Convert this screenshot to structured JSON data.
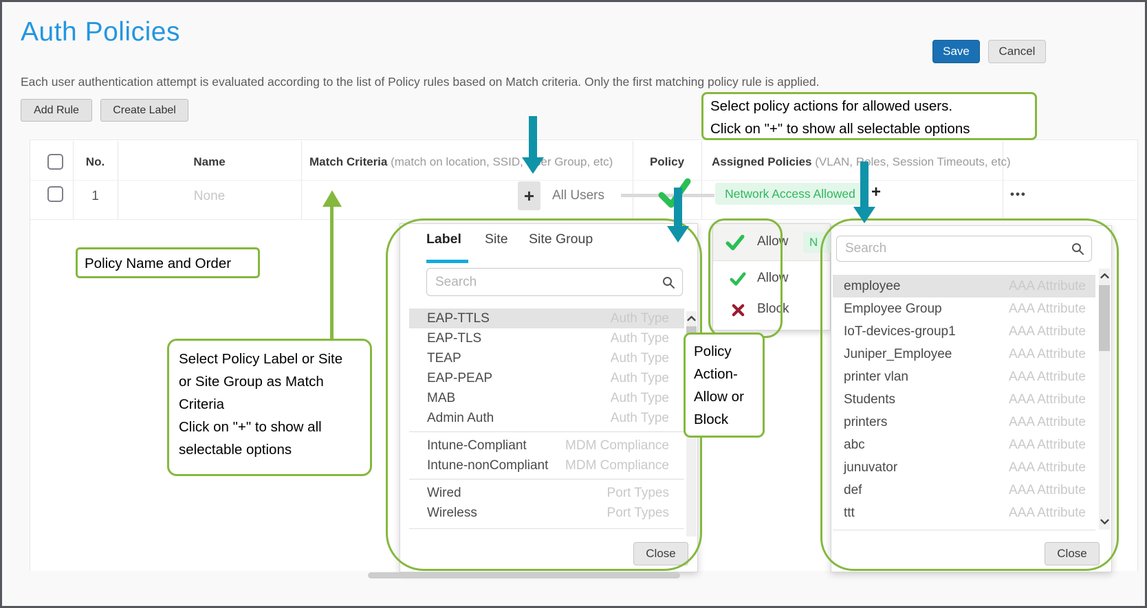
{
  "page": {
    "title": "Auth Policies",
    "description": "Each user authentication attempt is evaluated according to the list of Policy rules based on Match criteria. Only the first matching policy rule is applied."
  },
  "actions": {
    "save": "Save",
    "cancel": "Cancel",
    "add_rule": "Add Rule",
    "create_label": "Create Label"
  },
  "icons": {
    "add": "+",
    "more": "•••",
    "search": "magnifier",
    "allow": "green-check",
    "block": "red-x",
    "scroll_up": "chevron-up",
    "scroll_down": "chevron-down"
  },
  "table": {
    "headers": {
      "no": "No.",
      "name": "Name",
      "match_criteria": "Match Criteria",
      "match_criteria_hint": "(match on location, SSID, User Group, etc)",
      "policy": "Policy",
      "assigned_policies": "Assigned Policies",
      "assigned_policies_hint": "(VLAN, Roles, Session Timeouts, etc)"
    },
    "row": {
      "no": "1",
      "name": "None",
      "match_value": "All Users",
      "assigned_pill": "Network Access Allowed"
    }
  },
  "label_panel": {
    "tabs": [
      "Label",
      "Site",
      "Site Group"
    ],
    "active_tab": "Label",
    "search_placeholder": "Search",
    "items": [
      {
        "name": "EAP-TTLS",
        "type": "Auth Type",
        "selected": true
      },
      {
        "name": "EAP-TLS",
        "type": "Auth Type"
      },
      {
        "name": "TEAP",
        "type": "Auth Type"
      },
      {
        "name": "EAP-PEAP",
        "type": "Auth Type"
      },
      {
        "name": "MAB",
        "type": "Auth Type"
      },
      {
        "name": "Admin Auth",
        "type": "Auth Type"
      },
      {
        "name": "Intune-Compliant",
        "type": "MDM Compliance",
        "divider_before": true
      },
      {
        "name": "Intune-nonCompliant",
        "type": "MDM Compliance"
      },
      {
        "name": "Wired",
        "type": "Port Types",
        "divider_before": true
      },
      {
        "name": "Wireless",
        "type": "Port Types"
      }
    ],
    "close": "Close"
  },
  "action_dropdown": {
    "current": "Allow",
    "pill_fragment": "N",
    "options": [
      {
        "label": "Allow",
        "icon": "green-check"
      },
      {
        "label": "Block",
        "icon": "red-x"
      }
    ]
  },
  "policy_panel": {
    "search_placeholder": "Search",
    "items": [
      {
        "name": "employee",
        "type": "AAA Attribute",
        "selected": true
      },
      {
        "name": "Employee Group",
        "type": "AAA Attribute"
      },
      {
        "name": "IoT-devices-group1",
        "type": "AAA Attribute"
      },
      {
        "name": "Juniper_Employee",
        "type": "AAA Attribute"
      },
      {
        "name": "printer vlan",
        "type": "AAA Attribute"
      },
      {
        "name": "Students",
        "type": "AAA Attribute"
      },
      {
        "name": "printers",
        "type": "AAA Attribute"
      },
      {
        "name": "abc",
        "type": "AAA Attribute"
      },
      {
        "name": "junuvator",
        "type": "AAA Attribute"
      },
      {
        "name": "def",
        "type": "AAA Attribute"
      },
      {
        "name": "ttt",
        "type": "AAA Attribute"
      }
    ],
    "close": "Close"
  },
  "annotations": {
    "policy_actions_note": {
      "lines": [
        "Select policy actions for allowed users.",
        "Click on \"+\" to show all selectable options"
      ]
    },
    "policy_name_note": {
      "lines": [
        "Policy Name and Order"
      ]
    },
    "match_criteria_note": {
      "lines": [
        "Select Policy Label or Site",
        "or Site Group as Match",
        "Criteria",
        "Click on \"+\" to show all",
        "selectable options"
      ]
    },
    "policy_action_note": {
      "lines": [
        "Policy",
        "Action-",
        "Allow or",
        "Block"
      ]
    }
  },
  "colors": {
    "title_blue": "#2496e0",
    "save_blue": "#1a70b4",
    "annotation_green": "#85b83e",
    "arrow_teal": "#0f93a8",
    "success_green": "#2abf54",
    "pill_text_green": "#2eb85c",
    "pill_bg_green": "#e3f6ea",
    "block_red": "#9b1b2f",
    "tab_underline_blue": "#16aadc"
  }
}
